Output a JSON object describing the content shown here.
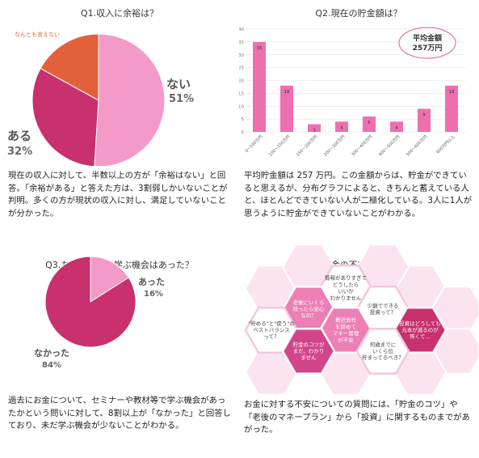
{
  "colors": {
    "pink_light": "#f39ac9",
    "magenta": "#c8306e",
    "orange": "#e2603a",
    "bar_pink": "#ee6fb0",
    "label_gray": "#666666"
  },
  "q1": {
    "title": "Q1.収入に余裕は？",
    "labels": {
      "nai_name": "ない",
      "nai_pct": "51%",
      "aru_name": "ある",
      "aru_pct": "32%",
      "nantomo_name": "なんとも言えない"
    },
    "text": "現在の収入に対して、半数以上の方が「余裕はない」と回答。「余裕がある」と答えた方は、3割弱しかいないことが判明。多くの方が現状の収入に対し、満足していないことが分かった。"
  },
  "q2": {
    "title": "Q2.現在の貯金額は？",
    "badge_line1": "平均金額",
    "badge_line2": "257万円",
    "text": "平均貯金額は 257 万円。この金額からは、貯金ができていると思えるが、分布グラフによると、きちんと蓄えている人と、ほとんどできていない人が二極化している。3人に1人が思うように貯金ができていないことがわかる。"
  },
  "q3": {
    "title": "Q3.お金について学ぶ機会はあった？",
    "labels": {
      "atta_name": "あった",
      "atta_pct": "16%",
      "nakatta_name": "なかった",
      "nakatta_pct": "84%"
    },
    "text": "過去にお金について、セミナーや教材等で学ぶ機会があったかという問いに対して、8割以上が「なかった」と回答しており、未だ学ぶ機会が少ないことがわかる。"
  },
  "q4": {
    "title": "Q4.お金の不安はあった？",
    "hexes": [
      {
        "lines": [
          "情報がありすぎて",
          "どうしたら",
          "いいか",
          "わかりません"
        ]
      },
      {
        "lines": [
          "老後にいくら",
          "残ったら安心",
          "なの？"
        ]
      },
      {
        "lines": [
          "少額でできる",
          "投資って？"
        ]
      },
      {
        "lines": [
          "\"貯める\"と\"使う\"の",
          "ベストバランス",
          "って？"
        ]
      },
      {
        "lines": [
          "最近会社",
          "を辞めて",
          "マネー管理",
          "が不安"
        ]
      },
      {
        "lines": [
          "投資はどうしても",
          "元本が減るのが",
          "怖くて…"
        ]
      },
      {
        "lines": [
          "貯金のコツが",
          "まだ、わかり",
          "ません"
        ]
      },
      {
        "lines": [
          "何歳までに",
          "いくら位",
          "貯まってるべき？"
        ]
      }
    ],
    "text": "お金に対する不安についての質問には、「貯金のコツ」や「老後のマネープラン」から「投資」に関するものまでがあがった。"
  },
  "chart_data": [
    {
      "type": "pie",
      "title": "Q1.収入に余裕は？",
      "slices": [
        {
          "name": "ない",
          "value": 51
        },
        {
          "name": "ある",
          "value": 32
        },
        {
          "name": "なんとも言えない",
          "value": 17
        }
      ]
    },
    {
      "type": "bar",
      "title": "Q2.現在の貯金額は？",
      "categories": [
        "0〜100万円",
        "100〜150万円",
        "150〜200万円",
        "200〜300万円",
        "300〜400万円",
        "400〜500万円",
        "500〜600万円",
        "600万円以上"
      ],
      "values": [
        35,
        18,
        3,
        4,
        6,
        4,
        9,
        18
      ],
      "ylim": [
        0,
        40
      ],
      "yticks": [
        0,
        5,
        10,
        15,
        20,
        25,
        30,
        35,
        40
      ],
      "annotation": "平均金額 257万円",
      "grid": true
    },
    {
      "type": "pie",
      "title": "Q3.お金について学ぶ機会はあった？",
      "slices": [
        {
          "name": "あった",
          "value": 16
        },
        {
          "name": "なかった",
          "value": 84
        }
      ]
    }
  ]
}
